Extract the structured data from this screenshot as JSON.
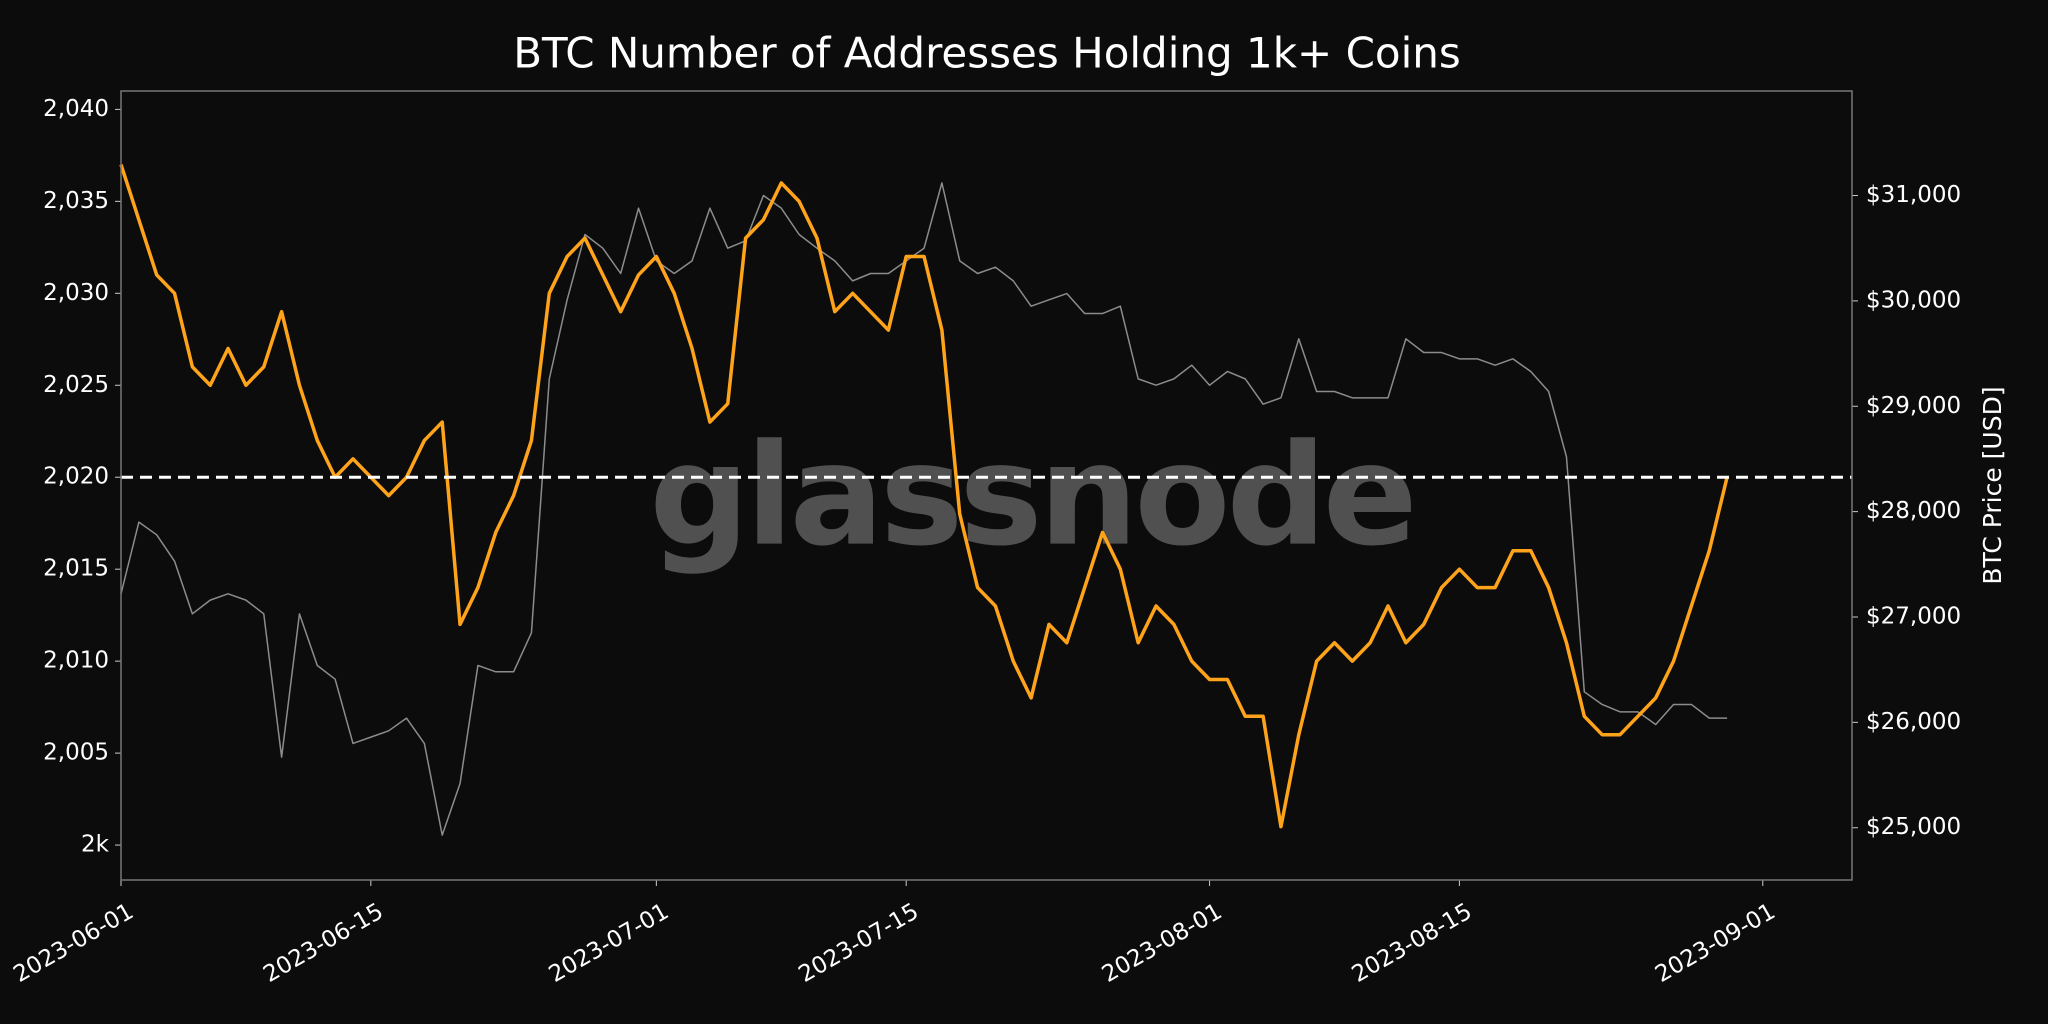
{
  "chart_data": {
    "type": "line",
    "title": "BTC Number of Addresses Holding 1k+ Coins",
    "y2_label": "BTC Price [USD]",
    "watermark": "glassnode",
    "x": [
      "2023-06-01",
      "2023-06-02",
      "2023-06-03",
      "2023-06-04",
      "2023-06-05",
      "2023-06-06",
      "2023-06-07",
      "2023-06-08",
      "2023-06-09",
      "2023-06-10",
      "2023-06-11",
      "2023-06-12",
      "2023-06-13",
      "2023-06-14",
      "2023-06-15",
      "2023-06-16",
      "2023-06-17",
      "2023-06-18",
      "2023-06-19",
      "2023-06-20",
      "2023-06-21",
      "2023-06-22",
      "2023-06-23",
      "2023-06-24",
      "2023-06-25",
      "2023-06-26",
      "2023-06-27",
      "2023-06-28",
      "2023-06-29",
      "2023-06-30",
      "2023-07-01",
      "2023-07-02",
      "2023-07-03",
      "2023-07-04",
      "2023-07-05",
      "2023-07-06",
      "2023-07-07",
      "2023-07-08",
      "2023-07-09",
      "2023-07-10",
      "2023-07-11",
      "2023-07-12",
      "2023-07-13",
      "2023-07-14",
      "2023-07-15",
      "2023-07-16",
      "2023-07-17",
      "2023-07-18",
      "2023-07-19",
      "2023-07-20",
      "2023-07-21",
      "2023-07-22",
      "2023-07-23",
      "2023-07-24",
      "2023-07-25",
      "2023-07-26",
      "2023-07-27",
      "2023-07-28",
      "2023-07-29",
      "2023-07-30",
      "2023-07-31",
      "2023-08-01",
      "2023-08-02",
      "2023-08-03",
      "2023-08-04",
      "2023-08-05",
      "2023-08-06",
      "2023-08-07",
      "2023-08-08",
      "2023-08-09",
      "2023-08-10",
      "2023-08-11",
      "2023-08-12",
      "2023-08-13",
      "2023-08-14",
      "2023-08-15",
      "2023-08-16",
      "2023-08-17",
      "2023-08-18",
      "2023-08-19",
      "2023-08-20",
      "2023-08-21",
      "2023-08-22",
      "2023-08-23",
      "2023-08-24",
      "2023-08-25",
      "2023-08-26",
      "2023-08-27",
      "2023-08-28",
      "2023-08-29",
      "2023-08-30"
    ],
    "series": [
      {
        "color": "#8c8c8c",
        "axis": "y2",
        "values": [
          27219,
          27900,
          27780,
          27530,
          27030,
          27160,
          27220,
          27160,
          27030,
          25670,
          27030,
          26540,
          26410,
          25800,
          25860,
          25920,
          26040,
          25800,
          24930,
          25420,
          26540,
          26480,
          26480,
          26850,
          29260,
          30010,
          30630,
          30500,
          30260,
          30880,
          30380,
          30260,
          30380,
          30880,
          30500,
          30570,
          31000,
          30880,
          30630,
          30500,
          30380,
          30190,
          30260,
          30260,
          30380,
          30500,
          31120,
          30380,
          30260,
          30320,
          30190,
          29950,
          30010,
          30070,
          29880,
          29880,
          29950,
          29260,
          29200,
          29260,
          29390,
          29200,
          29330,
          29260,
          29020,
          29080,
          29640,
          29140,
          29140,
          29080,
          29080,
          29080,
          29640,
          29510,
          29510,
          29450,
          29450,
          29390,
          29450,
          29330,
          29140,
          28520,
          26290,
          26170,
          26100,
          26100,
          25980,
          26170,
          26170,
          26040,
          26040
        ]
      },
      {
        "color": "#ffa31a",
        "values": [
          2037,
          2034,
          2031,
          2030,
          2026,
          2025,
          2027,
          2025,
          2026,
          2029,
          2025,
          2022,
          2020,
          2021,
          2020,
          2019,
          2020,
          2022,
          2023,
          2012,
          2014,
          2017,
          2019,
          2022,
          2030,
          2032,
          2033,
          2031,
          2029,
          2031,
          2032,
          2030,
          2027,
          2023,
          2024,
          2033,
          2034,
          2036,
          2035,
          2033,
          2029,
          2030,
          2029,
          2028,
          2032,
          2032,
          2028,
          2018,
          2014,
          2013,
          2010,
          2008,
          2012,
          2011,
          2014,
          2017,
          2015,
          2011,
          2013,
          2012,
          2010,
          2009,
          2009,
          2007,
          2007,
          2001,
          2006,
          2010,
          2011,
          2010,
          2011,
          2013,
          2011,
          2012,
          2014,
          2015,
          2014,
          2014,
          2016,
          2016,
          2014,
          2011,
          2007,
          2006,
          2006,
          2007,
          2008,
          2010,
          2013,
          2016,
          2020
        ]
      }
    ],
    "hline": 2020,
    "xlim": [
      "2023-06-01",
      "2023-09-06"
    ],
    "xticks": [
      "2023-06-01",
      "2023-06-15",
      "2023-07-01",
      "2023-07-15",
      "2023-08-01",
      "2023-08-15",
      "2023-09-01"
    ],
    "ylim": [
      1998.1,
      2041.0
    ],
    "yticks": [
      {
        "value": 2000,
        "label": "2k"
      },
      {
        "value": 2005,
        "label": "2,005"
      },
      {
        "value": 2010,
        "label": "2,010"
      },
      {
        "value": 2015,
        "label": "2,015"
      },
      {
        "value": 2020,
        "label": "2,020"
      },
      {
        "value": 2025,
        "label": "2,025"
      },
      {
        "value": 2030,
        "label": "2,030"
      },
      {
        "value": 2035,
        "label": "2,035"
      },
      {
        "value": 2040,
        "label": "2,040"
      }
    ],
    "y2lim": [
      24504,
      31992
    ],
    "y2ticks": [
      {
        "value": 25000,
        "label": "$25,000"
      },
      {
        "value": 26000,
        "label": "$26,000"
      },
      {
        "value": 27000,
        "label": "$27,000"
      },
      {
        "value": 28000,
        "label": "$28,000"
      },
      {
        "value": 29000,
        "label": "$29,000"
      },
      {
        "value": 30000,
        "label": "$30,000"
      },
      {
        "value": 31000,
        "label": "$31,000"
      }
    ]
  }
}
